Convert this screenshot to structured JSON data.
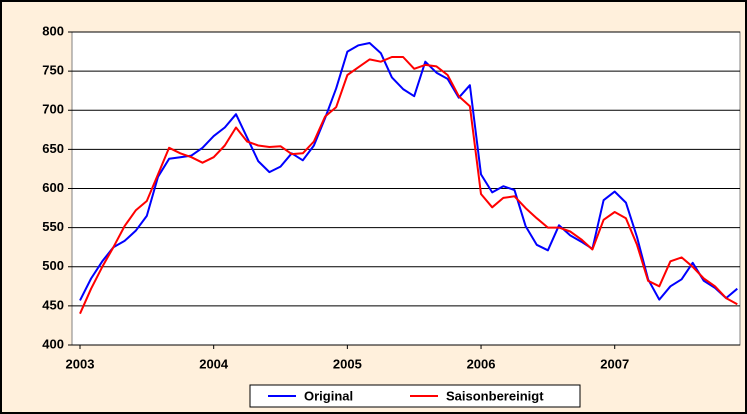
{
  "chart_data": {
    "type": "line",
    "categories": [
      "2003",
      null,
      null,
      null,
      null,
      null,
      null,
      null,
      null,
      null,
      null,
      null,
      "2004",
      null,
      null,
      null,
      null,
      null,
      null,
      null,
      null,
      null,
      null,
      null,
      "2005",
      null,
      null,
      null,
      null,
      null,
      null,
      null,
      null,
      null,
      null,
      null,
      "2006",
      null,
      null,
      null,
      null,
      null,
      null,
      null,
      null,
      null,
      null,
      null,
      "2007",
      null,
      null,
      null,
      null,
      null,
      null,
      null,
      null,
      null,
      null,
      null
    ],
    "series": [
      {
        "name": "Original",
        "color": "#0000ff",
        "values": [
          457,
          485,
          507,
          525,
          533,
          546,
          565,
          615,
          638,
          640,
          642,
          652,
          667,
          678,
          695,
          665,
          635,
          621,
          628,
          645,
          636,
          655,
          690,
          728,
          775,
          783,
          786,
          773,
          742,
          727,
          718,
          762,
          748,
          740,
          716,
          732,
          618,
          595,
          603,
          598,
          552,
          528,
          521,
          553,
          540,
          532,
          523,
          585,
          596,
          582,
          538,
          484,
          458,
          475,
          484,
          505,
          482,
          473,
          460,
          472
        ]
      },
      {
        "name": "Saisonbereinigt",
        "color": "#ff0000",
        "values": [
          440,
          472,
          500,
          525,
          552,
          572,
          584,
          618,
          652,
          645,
          640,
          633,
          640,
          655,
          678,
          660,
          655,
          653,
          654,
          644,
          645,
          660,
          692,
          704,
          745,
          755,
          765,
          762,
          768,
          768,
          753,
          758,
          756,
          745,
          718,
          705,
          593,
          576,
          588,
          590,
          575,
          562,
          550,
          550,
          545,
          535,
          522,
          560,
          570,
          562,
          528,
          482,
          475,
          507,
          512,
          500,
          485,
          475,
          460,
          452
        ]
      }
    ],
    "ylim": [
      400,
      800
    ],
    "yticks": [
      400,
      450,
      500,
      550,
      600,
      650,
      700,
      750,
      800
    ],
    "grid": true,
    "legend": "bottom"
  }
}
